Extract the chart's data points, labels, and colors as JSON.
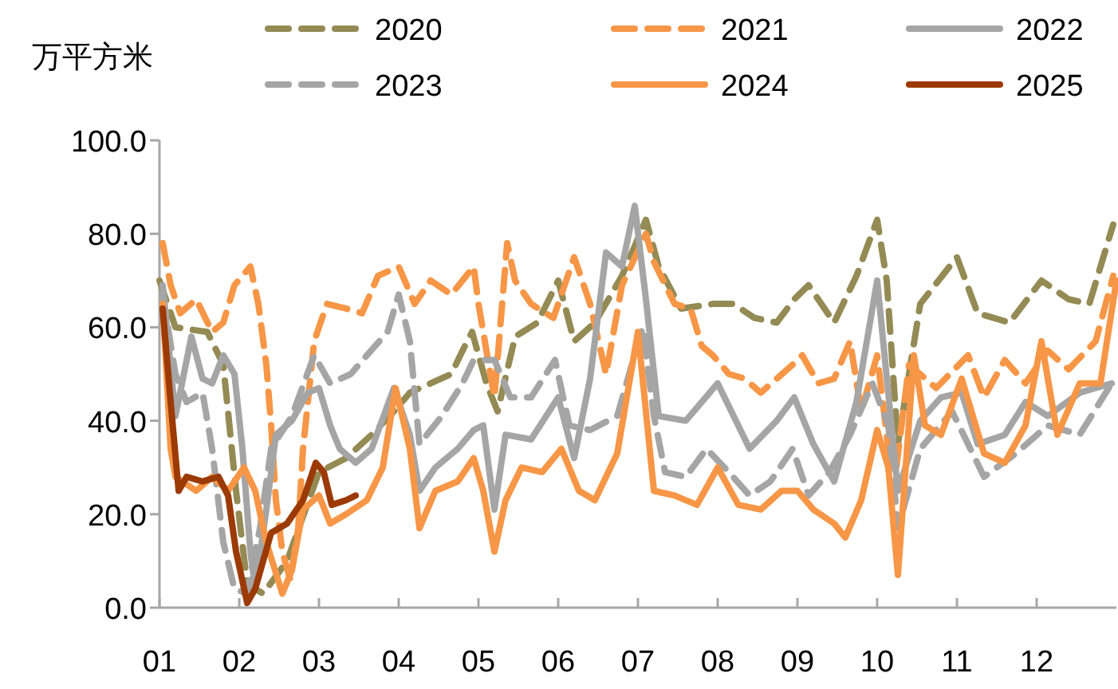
{
  "chart_data": {
    "type": "line",
    "ylabel": "万平方米",
    "legend": "top",
    "xlim": [
      1,
      13
    ],
    "xticks": [
      {
        "value": 1,
        "label": "01"
      },
      {
        "value": 2,
        "label": "02"
      },
      {
        "value": 3,
        "label": "03"
      },
      {
        "value": 4,
        "label": "04"
      },
      {
        "value": 5,
        "label": "05"
      },
      {
        "value": 6,
        "label": "06"
      },
      {
        "value": 7,
        "label": "07"
      },
      {
        "value": 8,
        "label": "08"
      },
      {
        "value": 9,
        "label": "09"
      },
      {
        "value": 10,
        "label": "10"
      },
      {
        "value": 11,
        "label": "11"
      },
      {
        "value": 12,
        "label": "12"
      }
    ],
    "ylim": [
      0,
      100
    ],
    "yticks": [
      {
        "value": 0,
        "label": "0.0"
      },
      {
        "value": 20,
        "label": "20.0"
      },
      {
        "value": 40,
        "label": "40.0"
      },
      {
        "value": 60,
        "label": "60.0"
      },
      {
        "value": 80,
        "label": "80.0"
      },
      {
        "value": 100,
        "label": "100.0"
      }
    ],
    "series": [
      {
        "name": "2020",
        "color": "#948a54",
        "line_style": "dashed",
        "x": [
          1,
          1.2,
          1.6,
          1.8,
          1.96,
          2.1,
          2.3,
          2.6,
          3,
          3.34,
          3.66,
          3.94,
          4.14,
          4.4,
          4.66,
          4.8,
          4.92,
          5.1,
          5.24,
          5.46,
          5.74,
          6,
          6.2,
          6.46,
          6.8,
          7.1,
          7.26,
          7.54,
          7.94,
          8.2,
          8.46,
          8.74,
          8.96,
          9.14,
          9.46,
          9.74,
          10,
          10.12,
          10.26,
          10.4,
          10.54,
          11,
          11.26,
          11.66,
          12.06,
          12.4,
          12.66,
          12.96
        ],
        "values": [
          70,
          60,
          59,
          52,
          25,
          5,
          3,
          10,
          29,
          32,
          37,
          42,
          46,
          48,
          50,
          55,
          59,
          48,
          42,
          58,
          61,
          70,
          57,
          61,
          71,
          83,
          73,
          64,
          65,
          65,
          62,
          61,
          66,
          69,
          61,
          71,
          83,
          70,
          35,
          50,
          65,
          75,
          63,
          61,
          70,
          66,
          65,
          82
        ]
      },
      {
        "name": "2021",
        "color": "#f79646",
        "line_style": "dashed",
        "x": [
          1.04,
          1.14,
          1.26,
          1.46,
          1.66,
          1.8,
          1.94,
          2.14,
          2.24,
          2.34,
          2.4,
          2.46,
          2.54,
          2.64,
          2.74,
          2.8,
          2.94,
          3.1,
          3.34,
          3.54,
          3.74,
          4,
          4.2,
          4.4,
          4.66,
          4.94,
          5,
          5.2,
          5.36,
          5.46,
          5.66,
          5.94,
          6.2,
          6.4,
          6.6,
          6.8,
          7.1,
          7.2,
          7.46,
          7.66,
          7.8,
          7.94,
          8.14,
          8.34,
          8.54,
          8.74,
          8.94,
          9.06,
          9.26,
          9.46,
          9.66,
          9.8,
          10,
          10.14,
          10.24,
          10.4,
          10.74,
          11.14,
          11.34,
          11.6,
          11.86,
          12.14,
          12.4,
          12.74,
          12.96
        ],
        "values": [
          78,
          69,
          63,
          66,
          59,
          61,
          69,
          73,
          65,
          52,
          39,
          23,
          12,
          6,
          17,
          34,
          57,
          65,
          64,
          63,
          71,
          73,
          65,
          70,
          67,
          73,
          65,
          45,
          78,
          70,
          65,
          62,
          75,
          65,
          50,
          69,
          80,
          74,
          65,
          64,
          56,
          54,
          50,
          49,
          46,
          49,
          52,
          54,
          48,
          49,
          57,
          42,
          54,
          34,
          30,
          52,
          47,
          54,
          45,
          53,
          48,
          55,
          51,
          57,
          71
        ]
      },
      {
        "name": "2022",
        "color": "#a5a5a5",
        "line_style": "solid",
        "x": [
          1.04,
          1.2,
          1.4,
          1.54,
          1.66,
          1.8,
          1.94,
          2.04,
          2.14,
          2.2,
          2.34,
          2.46,
          2.66,
          2.86,
          3,
          3.14,
          3.26,
          3.46,
          3.66,
          3.94,
          4.14,
          4.26,
          4.46,
          4.74,
          4.94,
          5.06,
          5.2,
          5.34,
          5.66,
          6,
          6.2,
          6.4,
          6.6,
          6.8,
          6.96,
          7.1,
          7.26,
          7.6,
          8,
          8.4,
          8.74,
          8.96,
          9.2,
          9.46,
          9.74,
          10,
          10.26,
          10.54,
          10.8,
          11.06,
          11.26,
          11.6,
          11.86,
          12.14,
          12.54,
          12.94
        ],
        "values": [
          69,
          41,
          58,
          49,
          48,
          54,
          50,
          34,
          12,
          4,
          21,
          37,
          40,
          46,
          47,
          39,
          34,
          31,
          34,
          47,
          37,
          25,
          30,
          34,
          38,
          39,
          21,
          37,
          36,
          45,
          32,
          49,
          76,
          73,
          86,
          66,
          41,
          40,
          48,
          34,
          40,
          45,
          35,
          27,
          44,
          70,
          25,
          40,
          45,
          46,
          35,
          37,
          44,
          41,
          46,
          48
        ]
      },
      {
        "name": "2023",
        "color": "#a5a5a5",
        "line_style": "dashed",
        "x": [
          1.04,
          1.2,
          1.34,
          1.54,
          1.66,
          1.8,
          1.94,
          2.1,
          2.26,
          2.4,
          2.66,
          2.94,
          3.14,
          3.4,
          3.6,
          3.86,
          4,
          4.14,
          4.26,
          4.54,
          4.8,
          4.94,
          5.2,
          5.4,
          5.66,
          5.96,
          6.14,
          6.4,
          6.74,
          6.94,
          7.06,
          7.2,
          7.34,
          7.6,
          7.86,
          8.14,
          8.4,
          8.66,
          8.94,
          9.14,
          9.4,
          9.66,
          9.94,
          10.14,
          10.26,
          10.54,
          10.94,
          11.34,
          11.74,
          12.14,
          12.54,
          12.94
        ],
        "values": [
          67,
          50,
          44,
          46,
          34,
          14,
          4,
          3,
          17,
          34,
          41,
          54,
          48,
          50,
          54,
          59,
          67,
          57,
          35,
          41,
          48,
          53,
          53,
          45,
          45,
          53,
          39,
          38,
          41,
          53,
          60,
          41,
          29,
          28,
          34,
          29,
          24,
          27,
          34,
          24,
          29,
          37,
          48,
          39,
          17,
          34,
          42,
          28,
          33,
          39,
          37,
          48
        ]
      },
      {
        "name": "2024",
        "color": "#f79646",
        "line_style": "solid",
        "x": [
          1.04,
          1.14,
          1.2,
          1.46,
          1.66,
          1.86,
          2.06,
          2.2,
          2.34,
          2.54,
          2.66,
          2.8,
          3,
          3.14,
          3.34,
          3.6,
          3.8,
          3.96,
          4.14,
          4.26,
          4.46,
          4.74,
          4.94,
          5.06,
          5.2,
          5.34,
          5.54,
          5.8,
          6.04,
          6.26,
          6.46,
          6.74,
          7,
          7.2,
          7.46,
          7.74,
          8,
          8.26,
          8.54,
          8.8,
          9,
          9.2,
          9.46,
          9.6,
          9.8,
          10,
          10.14,
          10.26,
          10.46,
          10.6,
          10.8,
          11.06,
          11.34,
          11.6,
          11.86,
          12.06,
          12.26,
          12.54,
          12.8,
          13
        ],
        "values": [
          65,
          34,
          28,
          25,
          28,
          25,
          30,
          25,
          14,
          3,
          8,
          21,
          24,
          18,
          20,
          23,
          30,
          47,
          34,
          17,
          25,
          27,
          32,
          25,
          12,
          23,
          30,
          29,
          34,
          25,
          23,
          33,
          59,
          25,
          24,
          22,
          30,
          22,
          21,
          25,
          25,
          21,
          18,
          15,
          23,
          38,
          30,
          7,
          54,
          39,
          37,
          49,
          33,
          31,
          39,
          57,
          37,
          48,
          48,
          70
        ]
      },
      {
        "name": "2025",
        "color": "#9c3a06",
        "line_style": "solid",
        "x": [
          1.04,
          1.14,
          1.24,
          1.34,
          1.54,
          1.74,
          1.86,
          1.96,
          2.1,
          2.2,
          2.4,
          2.6,
          2.8,
          2.96,
          3.06,
          3.16,
          3.34,
          3.46
        ],
        "values": [
          64,
          44,
          25,
          28,
          27,
          28,
          24,
          12,
          1,
          4,
          16,
          18,
          23,
          31,
          29,
          22,
          23,
          24
        ]
      }
    ]
  }
}
